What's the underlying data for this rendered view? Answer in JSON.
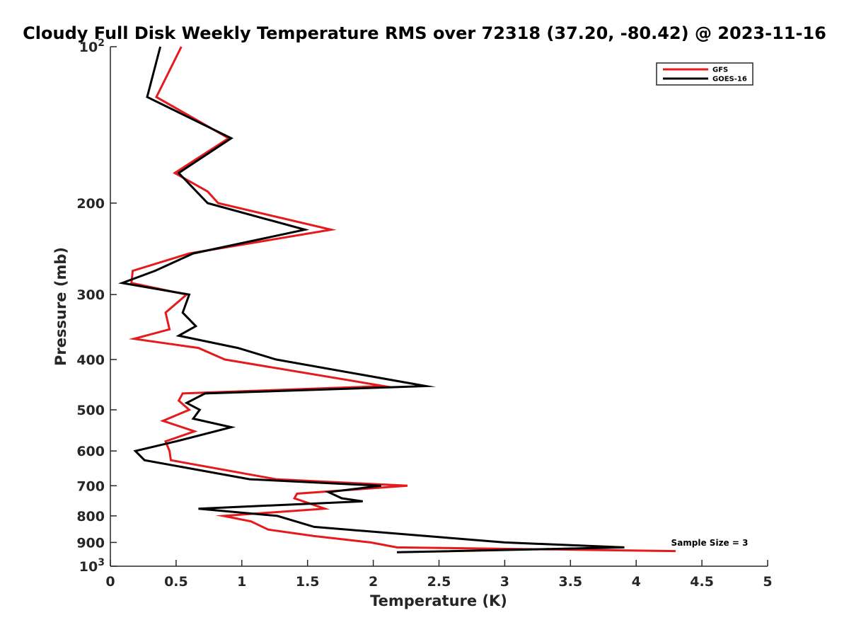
{
  "chart_data": {
    "type": "line",
    "title": "Cloudy Full Disk Weekly Temperature RMS over 72318 (37.20, -80.42) @ 2023-11-16",
    "xlabel": "Temperature (K)",
    "ylabel": "Pressure (mb)",
    "xlim": [
      0,
      5
    ],
    "ylim": [
      100,
      1000
    ],
    "y_scale": "log",
    "y_reversed": true,
    "x_ticks": [
      "0",
      "0.5",
      "1",
      "1.5",
      "2",
      "2.5",
      "3",
      "3.5",
      "4",
      "4.5",
      "5"
    ],
    "y_ticks": [
      {
        "value": 100,
        "base": "10",
        "exp": "2"
      },
      {
        "value": 200,
        "label": "200"
      },
      {
        "value": 300,
        "label": "300"
      },
      {
        "value": 400,
        "label": "400"
      },
      {
        "value": 500,
        "label": "500"
      },
      {
        "value": 600,
        "label": "600"
      },
      {
        "value": 700,
        "label": "700"
      },
      {
        "value": 800,
        "label": "800"
      },
      {
        "value": 900,
        "label": "900"
      },
      {
        "value": 1000,
        "base": "10",
        "exp": "3"
      }
    ],
    "grid": false,
    "legend_position": "top-right",
    "annotation": "Sample Size = 3",
    "series": [
      {
        "name": "GFS",
        "color": "#e41a1c",
        "points": [
          [
            0.54,
            100
          ],
          [
            0.35,
            125
          ],
          [
            0.9,
            150
          ],
          [
            0.49,
            175
          ],
          [
            0.74,
            190
          ],
          [
            0.82,
            200
          ],
          [
            1.68,
            225
          ],
          [
            0.6,
            250
          ],
          [
            0.17,
            270
          ],
          [
            0.16,
            285
          ],
          [
            0.58,
            300
          ],
          [
            0.42,
            325
          ],
          [
            0.45,
            350
          ],
          [
            0.18,
            365
          ],
          [
            0.67,
            380
          ],
          [
            0.87,
            400
          ],
          [
            2.08,
            450
          ],
          [
            0.55,
            465
          ],
          [
            0.52,
            480
          ],
          [
            0.6,
            500
          ],
          [
            0.4,
            525
          ],
          [
            0.64,
            550
          ],
          [
            0.42,
            575
          ],
          [
            0.45,
            600
          ],
          [
            0.46,
            625
          ],
          [
            1.26,
            680
          ],
          [
            2.26,
            700
          ],
          [
            1.42,
            725
          ],
          [
            1.4,
            740
          ],
          [
            1.63,
            775
          ],
          [
            0.86,
            800
          ],
          [
            1.07,
            820
          ],
          [
            1.2,
            850
          ],
          [
            1.55,
            875
          ],
          [
            1.98,
            900
          ],
          [
            2.18,
            920
          ],
          [
            4.3,
            935
          ]
        ]
      },
      {
        "name": "GOES-16",
        "color": "#000000",
        "points": [
          [
            0.38,
            100
          ],
          [
            0.28,
            125
          ],
          [
            0.92,
            150
          ],
          [
            0.52,
            175
          ],
          [
            0.74,
            200
          ],
          [
            1.48,
            225
          ],
          [
            0.63,
            250
          ],
          [
            0.34,
            270
          ],
          [
            0.09,
            285
          ],
          [
            0.6,
            300
          ],
          [
            0.55,
            325
          ],
          [
            0.65,
            345
          ],
          [
            0.52,
            360
          ],
          [
            0.97,
            380
          ],
          [
            1.26,
            400
          ],
          [
            2.4,
            450
          ],
          [
            0.72,
            465
          ],
          [
            0.58,
            485
          ],
          [
            0.68,
            500
          ],
          [
            0.63,
            520
          ],
          [
            0.92,
            540
          ],
          [
            0.5,
            575
          ],
          [
            0.19,
            600
          ],
          [
            0.26,
            625
          ],
          [
            1.06,
            680
          ],
          [
            2.06,
            700
          ],
          [
            1.66,
            720
          ],
          [
            1.76,
            740
          ],
          [
            1.92,
            750
          ],
          [
            0.67,
            775
          ],
          [
            1.27,
            800
          ],
          [
            1.55,
            840
          ],
          [
            2.53,
            880
          ],
          [
            3.0,
            900
          ],
          [
            3.91,
            920
          ],
          [
            2.18,
            940
          ]
        ]
      }
    ]
  }
}
